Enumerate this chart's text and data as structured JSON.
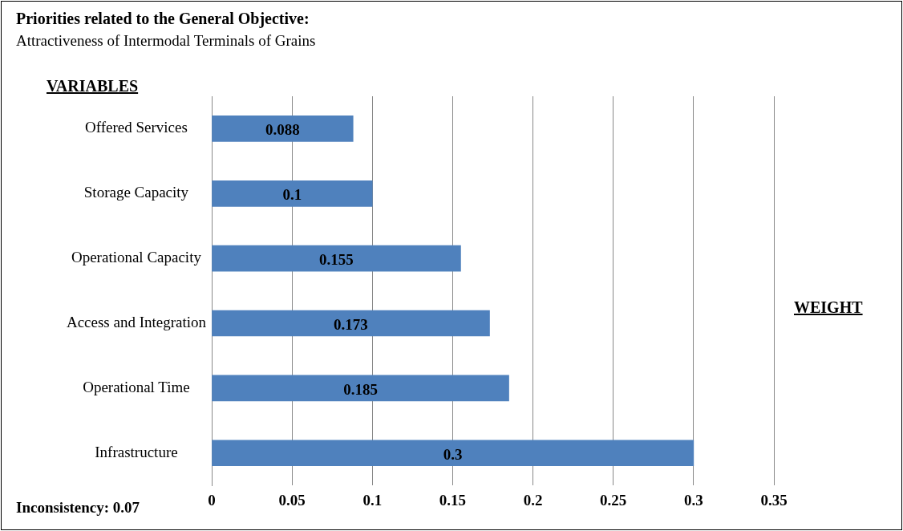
{
  "chart_data": {
    "type": "bar",
    "orientation": "horizontal",
    "title": "Priorities related to the General Objective:",
    "subtitle": "Attractiveness of Intermodal Terminals of Grains",
    "ylabel": "VARIABLES",
    "xlabel": "WEIGHT",
    "categories": [
      "Offered Services",
      "Storage Capacity",
      "Operational Capacity",
      "Access and Integration",
      "Operational Time",
      "Infrastructure"
    ],
    "values": [
      0.088,
      0.1,
      0.155,
      0.173,
      0.185,
      0.3
    ],
    "color": "#4f81bd",
    "xlim": [
      0,
      0.35
    ],
    "xticks": [
      0,
      0.05,
      0.1,
      0.15,
      0.2,
      0.25,
      0.3,
      0.35
    ],
    "grid": "x",
    "data_labels": true,
    "legend": false,
    "annotations": [
      "Inconsistency: 0.07"
    ]
  }
}
